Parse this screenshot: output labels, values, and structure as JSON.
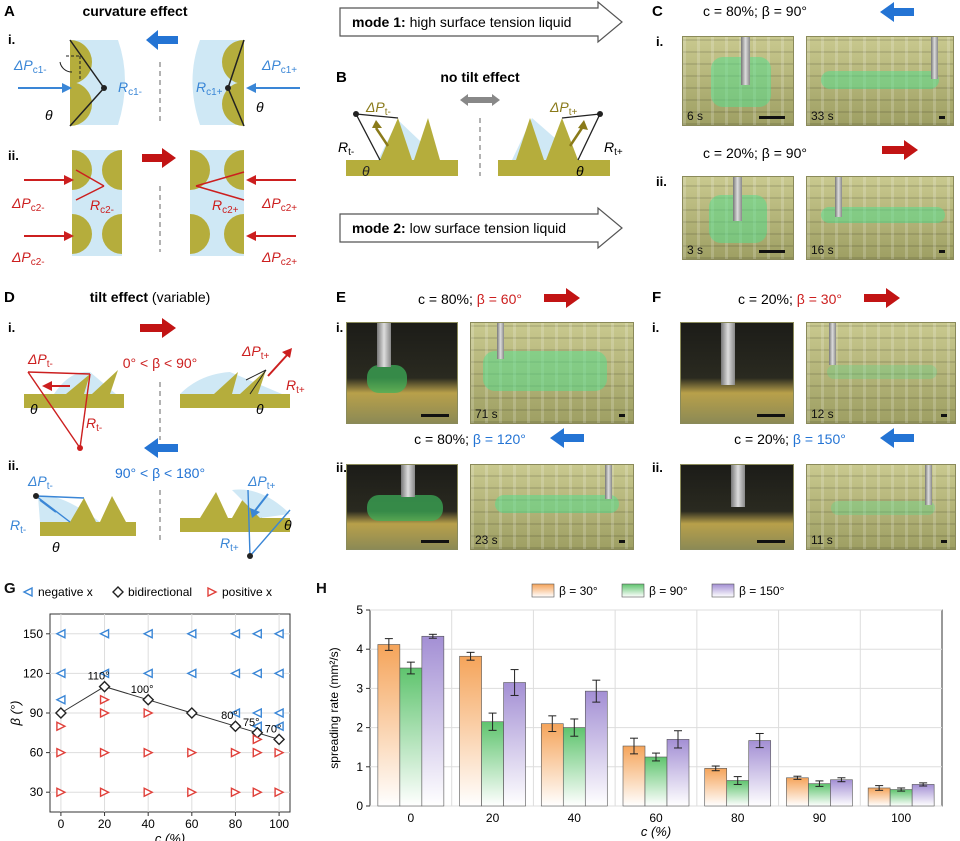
{
  "labels": {
    "A": "A",
    "A_title": "curvature effect",
    "A_i": "i.",
    "A_ii": "ii.",
    "dPc1m": "ΔP",
    "dPc1m_sub": "c1-",
    "Rc1m": "R",
    "Rc1m_sub": "c1-",
    "dPc1p": "ΔP",
    "dPc1p_sub": "c1+",
    "Rc1p": "R",
    "Rc1p_sub": "c1+",
    "theta": "θ",
    "dPc2m": "ΔP",
    "dPc2m_sub": "c2-",
    "Rc2m": "R",
    "Rc2m_sub": "c2-",
    "dPc2p": "ΔP",
    "dPc2p_sub": "c2+",
    "Rc2p": "R",
    "Rc2p_sub": "c2+",
    "mode1_bold": "mode 1:",
    "mode1_rest": " high surface tension liquid",
    "B": "B",
    "B_title": "no tilt effect",
    "dPtm": "ΔP",
    "dPtm_sub": "t-",
    "Rtm": "R",
    "Rtm_sub": "t-",
    "dPtp": "ΔP",
    "dPtp_sub": "t+",
    "Rtp": "R",
    "Rtp_sub": "t+",
    "mode2_bold": "mode 2:",
    "mode2_rest": " low surface tension liquid",
    "C": "C",
    "C_i_cond": "c = 80%;  β = 90°",
    "C_ii_cond": "c = 20%;  β = 90°",
    "i": "i.",
    "ii": "ii.",
    "D": "D",
    "D_title_bold": "tilt effect",
    "D_title_rest": " (variable)",
    "D_range_i": "0° < β < 90°",
    "D_range_ii": "90° < β < 180°",
    "E": "E",
    "E_i_cond_pre": "c = 80%;  ",
    "E_i_cond_beta": "β = 60°",
    "E_ii_cond_pre": "c = 80%;  ",
    "E_ii_cond_beta": "β = 120°",
    "F": "F",
    "F_i_cond_pre": "c = 20%;  ",
    "F_i_cond_beta": "β = 30°",
    "F_ii_cond_pre": "c = 20%;  ",
    "F_ii_cond_beta": "β = 150°",
    "G": "G",
    "H": "H"
  },
  "photos": {
    "C_i_a": "6 s",
    "C_i_b": "33 s",
    "C_ii_a": "3 s",
    "C_ii_b": "16 s",
    "E_i_b": "71 s",
    "E_ii_b": "23 s",
    "F_i_b": "12 s",
    "F_ii_b": "11 s"
  },
  "colors": {
    "olive": "#b5ad3c",
    "liquid": "#cfe8f5",
    "blue": "#3a86d6",
    "red": "#cc1f1f",
    "gray": "#888888"
  },
  "chart_data": [
    {
      "type": "scatter",
      "xlabel": "c (%)",
      "ylabel": "β (°)",
      "xlim": [
        -5,
        105
      ],
      "ylim": [
        15,
        165
      ],
      "x_ticks": [
        0,
        20,
        40,
        60,
        80,
        100
      ],
      "y_ticks": [
        30,
        60,
        90,
        120,
        150
      ],
      "legend": [
        "negative x",
        "bidirectional",
        "positive x"
      ],
      "legend_position": "top",
      "grid": true,
      "series": [
        {
          "name": "negative x",
          "marker": "left-triangle",
          "color": "#3a86d6",
          "points": [
            [
              0,
              150
            ],
            [
              0,
              120
            ],
            [
              0,
              100
            ],
            [
              20,
              150
            ],
            [
              20,
              120
            ],
            [
              40,
              150
            ],
            [
              40,
              120
            ],
            [
              60,
              150
            ],
            [
              60,
              120
            ],
            [
              80,
              150
            ],
            [
              80,
              120
            ],
            [
              80,
              90
            ],
            [
              90,
              150
            ],
            [
              90,
              120
            ],
            [
              90,
              90
            ],
            [
              90,
              80
            ],
            [
              100,
              150
            ],
            [
              100,
              120
            ],
            [
              100,
              90
            ],
            [
              100,
              80
            ]
          ]
        },
        {
          "name": "bidirectional",
          "marker": "diamond",
          "color": "#222222",
          "points": [
            [
              0,
              90
            ],
            [
              20,
              110
            ],
            [
              40,
              100
            ],
            [
              60,
              90
            ],
            [
              80,
              80
            ],
            [
              90,
              75
            ],
            [
              100,
              70
            ]
          ],
          "point_labels": [
            "",
            "110°",
            "100°",
            "",
            "80°",
            "75°",
            "70°"
          ]
        },
        {
          "name": "positive x",
          "marker": "right-triangle",
          "color": "#e0403a",
          "points": [
            [
              0,
              80
            ],
            [
              0,
              60
            ],
            [
              0,
              30
            ],
            [
              20,
              100
            ],
            [
              20,
              90
            ],
            [
              20,
              60
            ],
            [
              20,
              30
            ],
            [
              40,
              90
            ],
            [
              40,
              60
            ],
            [
              40,
              30
            ],
            [
              60,
              60
            ],
            [
              60,
              30
            ],
            [
              80,
              60
            ],
            [
              80,
              30
            ],
            [
              90,
              70
            ],
            [
              90,
              60
            ],
            [
              90,
              30
            ],
            [
              100,
              60
            ],
            [
              100,
              30
            ]
          ]
        }
      ]
    },
    {
      "type": "bar",
      "xlabel": "c (%)",
      "ylabel": "spreading rate (mm²/s)",
      "categories": [
        "0",
        "20",
        "40",
        "60",
        "80",
        "90",
        "100"
      ],
      "ylim": [
        0,
        5
      ],
      "y_ticks": [
        0,
        1,
        2,
        3,
        4,
        5
      ],
      "legend_position": "top",
      "series": [
        {
          "name": "β = 30°",
          "color": "#f5a45a",
          "values": [
            4.12,
            3.82,
            2.1,
            1.53,
            0.96,
            0.72,
            0.46
          ],
          "errors": [
            0.15,
            0.1,
            0.2,
            0.2,
            0.06,
            0.04,
            0.06
          ]
        },
        {
          "name": "β = 90°",
          "color": "#5fc46e",
          "values": [
            3.52,
            2.15,
            2.0,
            1.25,
            0.65,
            0.57,
            0.42
          ],
          "errors": [
            0.15,
            0.22,
            0.22,
            0.1,
            0.1,
            0.07,
            0.04
          ]
        },
        {
          "name": "β = 150°",
          "color": "#a38fd4",
          "values": [
            4.33,
            3.15,
            2.93,
            1.7,
            1.67,
            0.67,
            0.55
          ],
          "errors": [
            0.05,
            0.33,
            0.28,
            0.22,
            0.18,
            0.05,
            0.04
          ]
        }
      ]
    }
  ]
}
